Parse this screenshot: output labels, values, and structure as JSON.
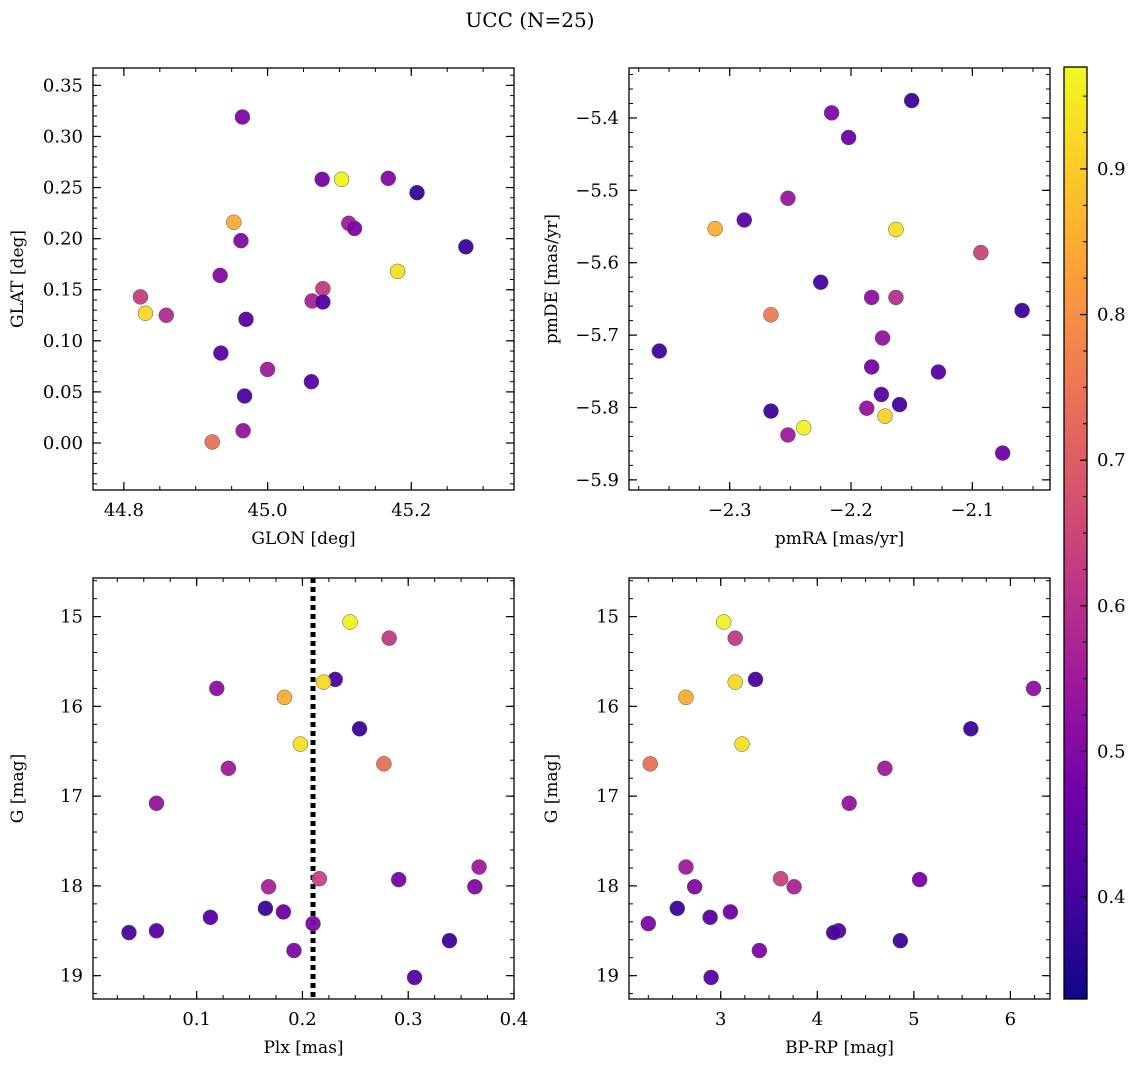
{
  "chart_data": {
    "title": "UCC (N=25)",
    "type": "scatter",
    "colorbar": {
      "colormap": "plasma",
      "range": [
        0.33,
        0.97
      ],
      "ticks": [
        0.4,
        0.5,
        0.6,
        0.7,
        0.8,
        0.9
      ],
      "tick_labels": [
        "0.4",
        "0.5",
        "0.6",
        "0.7",
        "0.8",
        "0.9"
      ]
    },
    "colors": {
      "plasma_stops": [
        "#0d0887",
        "#46039f",
        "#7201a8",
        "#9c179e",
        "#bd3786",
        "#d8576b",
        "#ed7953",
        "#fb9f3a",
        "#fdca26",
        "#f0f921"
      ],
      "guide_line": "#000000"
    },
    "panels": [
      {
        "id": "glon-glat",
        "xlabel": "GLON [deg]",
        "ylabel": "GLAT [deg]",
        "xlim": [
          44.757,
          45.343
        ],
        "ylim": [
          -0.046,
          0.367
        ],
        "y_inverted": false,
        "xticks": [
          44.8,
          45.0,
          45.2
        ],
        "xtick_labels": [
          "44.8",
          "45.0",
          "45.2"
        ],
        "yticks": [
          0.0,
          0.05,
          0.1,
          0.15,
          0.2,
          0.25,
          0.3,
          0.35
        ],
        "ytick_labels": [
          "0.00",
          "0.05",
          "0.10",
          "0.15",
          "0.20",
          "0.25",
          "0.30",
          "0.35"
        ],
        "points": [
          {
            "x": 44.965,
            "y": 0.319,
            "c": 0.49
          },
          {
            "x": 45.076,
            "y": 0.258,
            "c": 0.48
          },
          {
            "x": 45.103,
            "y": 0.258,
            "c": 0.96
          },
          {
            "x": 45.168,
            "y": 0.259,
            "c": 0.5
          },
          {
            "x": 45.208,
            "y": 0.245,
            "c": 0.38
          },
          {
            "x": 44.953,
            "y": 0.216,
            "c": 0.85
          },
          {
            "x": 45.113,
            "y": 0.215,
            "c": 0.56
          },
          {
            "x": 45.121,
            "y": 0.21,
            "c": 0.49
          },
          {
            "x": 44.963,
            "y": 0.198,
            "c": 0.5
          },
          {
            "x": 45.276,
            "y": 0.192,
            "c": 0.39
          },
          {
            "x": 45.181,
            "y": 0.168,
            "c": 0.93
          },
          {
            "x": 44.934,
            "y": 0.164,
            "c": 0.5
          },
          {
            "x": 45.077,
            "y": 0.151,
            "c": 0.62
          },
          {
            "x": 44.823,
            "y": 0.143,
            "c": 0.63
          },
          {
            "x": 45.062,
            "y": 0.139,
            "c": 0.57
          },
          {
            "x": 45.077,
            "y": 0.138,
            "c": 0.42
          },
          {
            "x": 44.83,
            "y": 0.127,
            "c": 0.92
          },
          {
            "x": 44.859,
            "y": 0.125,
            "c": 0.59
          },
          {
            "x": 44.97,
            "y": 0.121,
            "c": 0.43
          },
          {
            "x": 44.935,
            "y": 0.088,
            "c": 0.43
          },
          {
            "x": 45.0,
            "y": 0.072,
            "c": 0.55
          },
          {
            "x": 45.061,
            "y": 0.06,
            "c": 0.43
          },
          {
            "x": 44.968,
            "y": 0.046,
            "c": 0.41
          },
          {
            "x": 44.966,
            "y": 0.012,
            "c": 0.53
          },
          {
            "x": 44.923,
            "y": 0.001,
            "c": 0.74
          }
        ]
      },
      {
        "id": "pmra-pmde",
        "xlabel": "pmRA [mas/yr]",
        "ylabel": "pmDE [mas/yr]",
        "xlim": [
          -2.383,
          -2.036
        ],
        "ylim": [
          -5.914,
          -5.331
        ],
        "y_inverted": false,
        "xticks": [
          -2.3,
          -2.2,
          -2.1
        ],
        "xtick_labels": [
          "−2.3",
          "−2.2",
          "−2.1"
        ],
        "yticks": [
          -5.9,
          -5.8,
          -5.7,
          -5.6,
          -5.5,
          -5.4
        ],
        "ytick_labels": [
          "−5.9",
          "−5.8",
          "−5.7",
          "−5.6",
          "−5.5",
          "−5.4"
        ],
        "points": [
          {
            "x": -2.15,
            "y": -5.376,
            "c": 0.39
          },
          {
            "x": -2.216,
            "y": -5.393,
            "c": 0.49
          },
          {
            "x": -2.202,
            "y": -5.427,
            "c": 0.47
          },
          {
            "x": -2.252,
            "y": -5.511,
            "c": 0.54
          },
          {
            "x": -2.288,
            "y": -5.541,
            "c": 0.44
          },
          {
            "x": -2.312,
            "y": -5.553,
            "c": 0.85
          },
          {
            "x": -2.163,
            "y": -5.554,
            "c": 0.93
          },
          {
            "x": -2.093,
            "y": -5.586,
            "c": 0.64
          },
          {
            "x": -2.225,
            "y": -5.627,
            "c": 0.4
          },
          {
            "x": -2.183,
            "y": -5.648,
            "c": 0.52
          },
          {
            "x": -2.163,
            "y": -5.648,
            "c": 0.6
          },
          {
            "x": -2.059,
            "y": -5.666,
            "c": 0.39
          },
          {
            "x": -2.266,
            "y": -5.672,
            "c": 0.76
          },
          {
            "x": -2.174,
            "y": -5.704,
            "c": 0.53
          },
          {
            "x": -2.358,
            "y": -5.722,
            "c": 0.4
          },
          {
            "x": -2.183,
            "y": -5.744,
            "c": 0.48
          },
          {
            "x": -2.128,
            "y": -5.751,
            "c": 0.43
          },
          {
            "x": -2.175,
            "y": -5.782,
            "c": 0.43
          },
          {
            "x": -2.16,
            "y": -5.796,
            "c": 0.4
          },
          {
            "x": -2.187,
            "y": -5.801,
            "c": 0.53
          },
          {
            "x": -2.266,
            "y": -5.805,
            "c": 0.39
          },
          {
            "x": -2.172,
            "y": -5.812,
            "c": 0.91
          },
          {
            "x": -2.239,
            "y": -5.828,
            "c": 0.96
          },
          {
            "x": -2.252,
            "y": -5.838,
            "c": 0.55
          },
          {
            "x": -2.075,
            "y": -5.863,
            "c": 0.47
          }
        ]
      },
      {
        "id": "plx-g",
        "xlabel": "Plx [mas]",
        "ylabel": "G [mag]",
        "xlim": [
          0.002,
          0.4
        ],
        "ylim": [
          19.26,
          14.57
        ],
        "y_inverted": true,
        "vline": 0.21,
        "xticks": [
          0.1,
          0.2,
          0.3,
          0.4
        ],
        "xtick_labels": [
          "0.1",
          "0.2",
          "0.3",
          "0.4"
        ],
        "yticks": [
          15,
          16,
          17,
          18,
          19
        ],
        "ytick_labels": [
          "15",
          "16",
          "17",
          "18",
          "19"
        ],
        "points": [
          {
            "x": 0.245,
            "y": 15.06,
            "c": 0.96
          },
          {
            "x": 0.282,
            "y": 15.24,
            "c": 0.62
          },
          {
            "x": 0.231,
            "y": 15.7,
            "c": 0.41
          },
          {
            "x": 0.22,
            "y": 15.73,
            "c": 0.92
          },
          {
            "x": 0.119,
            "y": 15.8,
            "c": 0.52
          },
          {
            "x": 0.183,
            "y": 15.9,
            "c": 0.85
          },
          {
            "x": 0.254,
            "y": 16.25,
            "c": 0.39
          },
          {
            "x": 0.198,
            "y": 16.42,
            "c": 0.93
          },
          {
            "x": 0.277,
            "y": 16.64,
            "c": 0.74
          },
          {
            "x": 0.13,
            "y": 16.69,
            "c": 0.55
          },
          {
            "x": 0.062,
            "y": 17.08,
            "c": 0.53
          },
          {
            "x": 0.367,
            "y": 17.79,
            "c": 0.55
          },
          {
            "x": 0.216,
            "y": 17.92,
            "c": 0.64
          },
          {
            "x": 0.291,
            "y": 17.93,
            "c": 0.48
          },
          {
            "x": 0.168,
            "y": 18.01,
            "c": 0.57
          },
          {
            "x": 0.363,
            "y": 18.01,
            "c": 0.5
          },
          {
            "x": 0.165,
            "y": 18.25,
            "c": 0.39
          },
          {
            "x": 0.182,
            "y": 18.29,
            "c": 0.47
          },
          {
            "x": 0.113,
            "y": 18.35,
            "c": 0.43
          },
          {
            "x": 0.21,
            "y": 18.42,
            "c": 0.49
          },
          {
            "x": 0.062,
            "y": 18.5,
            "c": 0.43
          },
          {
            "x": 0.036,
            "y": 18.52,
            "c": 0.41
          },
          {
            "x": 0.339,
            "y": 18.61,
            "c": 0.39
          },
          {
            "x": 0.192,
            "y": 18.72,
            "c": 0.49
          },
          {
            "x": 0.306,
            "y": 19.02,
            "c": 0.43
          }
        ]
      },
      {
        "id": "bprp-g",
        "xlabel": "BP-RP [mag]",
        "ylabel": "G [mag]",
        "xlim": [
          2.05,
          6.41
        ],
        "ylim": [
          19.26,
          14.57
        ],
        "y_inverted": true,
        "xticks": [
          3,
          4,
          5,
          6
        ],
        "xtick_labels": [
          "3",
          "4",
          "5",
          "6"
        ],
        "yticks": [
          15,
          16,
          17,
          18,
          19
        ],
        "ytick_labels": [
          "15",
          "16",
          "17",
          "18",
          "19"
        ],
        "points": [
          {
            "x": 3.03,
            "y": 15.06,
            "c": 0.96
          },
          {
            "x": 3.15,
            "y": 15.24,
            "c": 0.62
          },
          {
            "x": 3.36,
            "y": 15.7,
            "c": 0.41
          },
          {
            "x": 3.15,
            "y": 15.73,
            "c": 0.92
          },
          {
            "x": 6.24,
            "y": 15.8,
            "c": 0.52
          },
          {
            "x": 2.64,
            "y": 15.9,
            "c": 0.85
          },
          {
            "x": 5.59,
            "y": 16.25,
            "c": 0.39
          },
          {
            "x": 3.22,
            "y": 16.42,
            "c": 0.93
          },
          {
            "x": 2.27,
            "y": 16.64,
            "c": 0.74
          },
          {
            "x": 4.7,
            "y": 16.69,
            "c": 0.55
          },
          {
            "x": 4.33,
            "y": 17.08,
            "c": 0.53
          },
          {
            "x": 2.64,
            "y": 17.79,
            "c": 0.55
          },
          {
            "x": 3.62,
            "y": 17.92,
            "c": 0.64
          },
          {
            "x": 5.06,
            "y": 17.93,
            "c": 0.48
          },
          {
            "x": 2.73,
            "y": 18.01,
            "c": 0.5
          },
          {
            "x": 3.76,
            "y": 18.01,
            "c": 0.57
          },
          {
            "x": 2.55,
            "y": 18.25,
            "c": 0.39
          },
          {
            "x": 3.1,
            "y": 18.29,
            "c": 0.47
          },
          {
            "x": 2.89,
            "y": 18.35,
            "c": 0.43
          },
          {
            "x": 2.25,
            "y": 18.42,
            "c": 0.49
          },
          {
            "x": 4.22,
            "y": 18.5,
            "c": 0.43
          },
          {
            "x": 4.17,
            "y": 18.52,
            "c": 0.41
          },
          {
            "x": 4.86,
            "y": 18.61,
            "c": 0.39
          },
          {
            "x": 3.4,
            "y": 18.72,
            "c": 0.49
          },
          {
            "x": 2.9,
            "y": 19.02,
            "c": 0.43
          }
        ]
      }
    ]
  }
}
